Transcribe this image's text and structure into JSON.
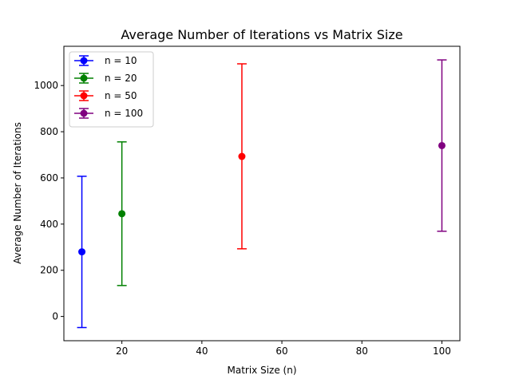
{
  "chart_data": {
    "type": "scatter",
    "title": "Average Number of Iterations vs Matrix Size",
    "xlabel": "Matrix Size (n)",
    "ylabel": "Average Number of Iterations",
    "xlim": [
      5.5,
      104.5
    ],
    "ylim": [
      -105,
      1170
    ],
    "xticks": [
      20,
      40,
      60,
      80,
      100
    ],
    "yticks": [
      0,
      200,
      400,
      600,
      800,
      1000
    ],
    "grid": false,
    "legend_position": "top-left",
    "error_bars": true,
    "series": [
      {
        "name": "n = 10",
        "color": "#0000ff",
        "x": 10,
        "y": 280,
        "err_low": -48,
        "err_high": 607
      },
      {
        "name": "n = 20",
        "color": "#008000",
        "x": 20,
        "y": 445,
        "err_low": 134,
        "err_high": 756
      },
      {
        "name": "n = 50",
        "color": "#ff0000",
        "x": 50,
        "y": 693,
        "err_low": 293,
        "err_high": 1094
      },
      {
        "name": "n = 100",
        "color": "#800080",
        "x": 100,
        "y": 740,
        "err_low": 369,
        "err_high": 1111
      }
    ]
  }
}
